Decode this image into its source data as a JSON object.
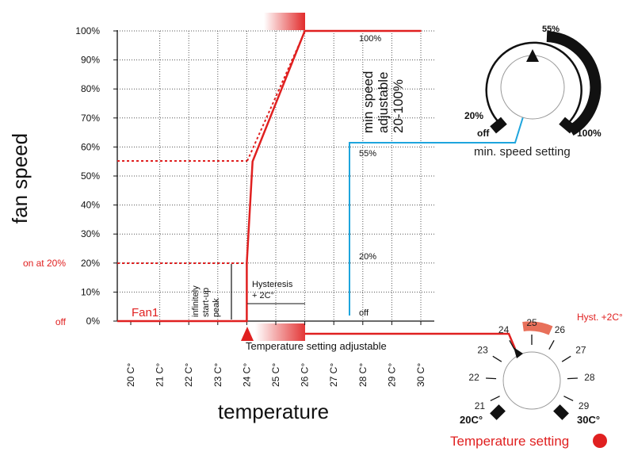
{
  "chart_data": {
    "type": "line",
    "title": "",
    "xlabel": "temperature",
    "ylabel": "fan speed",
    "x_ticks": [
      "20 C°",
      "21 C°",
      "22 C°",
      "23 C°",
      "24 C°",
      "25 C°",
      "26 C°",
      "27 C°",
      "28 C°",
      "29 C°",
      "30 C°"
    ],
    "y_ticks": [
      "0%",
      "10%",
      "20%",
      "30%",
      "40%",
      "50%",
      "60%",
      "70%",
      "80%",
      "90%",
      "100%"
    ],
    "xlim": [
      20,
      30
    ],
    "ylim": [
      0,
      100
    ],
    "grid": "dotted",
    "series": [
      {
        "name": "Fan1",
        "x": [
          20,
          24,
          24,
          24.2,
          26,
          26.4
        ],
        "y": [
          0,
          0,
          20,
          55,
          100,
          100
        ]
      }
    ]
  },
  "labels": {
    "on_at_20": "on at 20%",
    "off_axis": "off",
    "fan1": "Fan1",
    "startup_line1": "infinitely",
    "startup_line2": "start-up",
    "startup_line3": "peak",
    "hyst_line1": "Hysteresis",
    "hyst_line2": "+ 2C°",
    "temp_setting_adjustable": "Temperature setting adjustable",
    "level_100": "100%",
    "level_55": "55%",
    "level_20": "20%",
    "level_off": "off",
    "minspeed_line1": "min speed",
    "minspeed_line2": "adjustable",
    "minspeed_line3": "20-100%"
  },
  "speed_dial": {
    "top_label": "55%",
    "min_label": "20%",
    "max_label": "100%",
    "off_label": "off",
    "caption": "min. speed setting",
    "setting_percent": 55
  },
  "temp_dial": {
    "numbers": [
      "21",
      "22",
      "23",
      "24",
      "25",
      "26",
      "27",
      "28",
      "29"
    ],
    "min_label": "20C°",
    "max_label": "30C°",
    "hyst_label": "Hyst. +2C°",
    "caption": "Temperature setting",
    "setting_celsius": 24
  },
  "colors": {
    "curve": "#e02020",
    "min_speed_line": "#1ea5dd",
    "ink": "#111111"
  }
}
